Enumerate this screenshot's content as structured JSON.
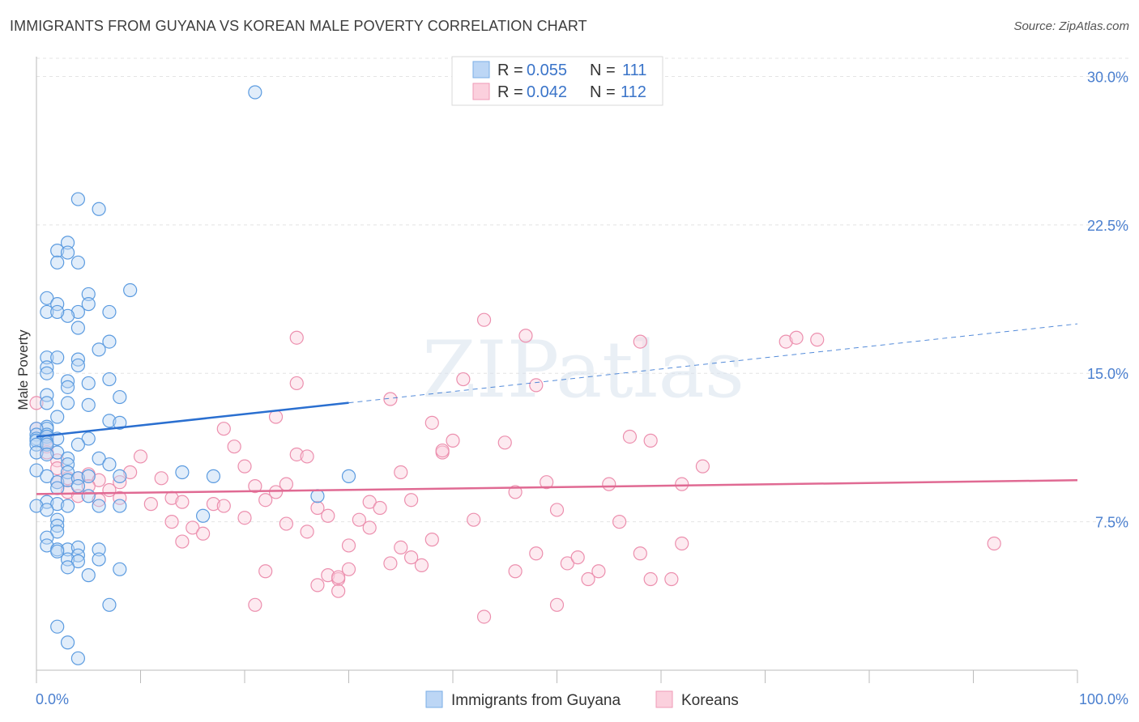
{
  "title": "IMMIGRANTS FROM GUYANA VS KOREAN MALE POVERTY CORRELATION CHART",
  "source": "Source: ZipAtlas.com",
  "watermark": "ZIPatlas",
  "legend_top": {
    "rows": [
      {
        "r_label": "R = ",
        "r_value": "0.055",
        "n_label": "N = ",
        "n_value": "111",
        "color": "#9cc3ef"
      },
      {
        "r_label": "R = ",
        "r_value": "0.042",
        "n_label": "N = ",
        "n_value": "112",
        "color": "#f7b8cc"
      }
    ]
  },
  "legend_bottom": [
    "Immigrants from Guyana",
    "Koreans"
  ],
  "chart_data": {
    "type": "scatter",
    "title": "IMMIGRANTS FROM GUYANA VS KOREAN MALE POVERTY CORRELATION CHART",
    "xlabel": "",
    "ylabel": "Male Poverty",
    "xlim": [
      0,
      100
    ],
    "ylim": [
      0,
      31
    ],
    "x_tick_labels": [
      "0.0%",
      "100.0%"
    ],
    "y_ticks": [
      7.5,
      15.0,
      22.5,
      30.0
    ],
    "y_tick_labels": [
      "7.5%",
      "15.0%",
      "22.5%",
      "30.0%"
    ],
    "grid": true,
    "legend_position": "top-center",
    "colors": {
      "guyana": "#5b9be0",
      "koreans": "#ec8fae",
      "guyana_line": "#2a6fd0",
      "koreans_line": "#e06a93"
    },
    "series": [
      {
        "name": "Immigrants from Guyana",
        "trend": {
          "x0": 0,
          "y0": 11.8,
          "x1": 100,
          "y1": 17.5,
          "solid_until": 30
        },
        "points": [
          [
            21,
            29.2
          ],
          [
            4,
            23.8
          ],
          [
            6,
            23.3
          ],
          [
            3,
            21.6
          ],
          [
            2,
            21.2
          ],
          [
            3,
            21.1
          ],
          [
            2,
            20.6
          ],
          [
            4,
            20.6
          ],
          [
            9,
            19.2
          ],
          [
            1,
            18.8
          ],
          [
            5,
            19.0
          ],
          [
            2,
            18.5
          ],
          [
            5,
            18.5
          ],
          [
            1,
            18.1
          ],
          [
            4,
            18.1
          ],
          [
            3,
            17.9
          ],
          [
            2,
            18.1
          ],
          [
            7,
            18.1
          ],
          [
            4,
            17.3
          ],
          [
            7,
            16.6
          ],
          [
            6,
            16.2
          ],
          [
            1,
            15.8
          ],
          [
            2,
            15.8
          ],
          [
            4,
            15.7
          ],
          [
            4,
            15.4
          ],
          [
            1,
            15.3
          ],
          [
            1,
            15.0
          ],
          [
            7,
            14.7
          ],
          [
            3,
            14.6
          ],
          [
            5,
            14.5
          ],
          [
            3,
            14.3
          ],
          [
            1,
            13.9
          ],
          [
            8,
            13.8
          ],
          [
            1,
            13.5
          ],
          [
            3,
            13.5
          ],
          [
            5,
            13.4
          ],
          [
            2,
            12.8
          ],
          [
            7,
            12.6
          ],
          [
            1,
            12.3
          ],
          [
            8,
            12.5
          ],
          [
            1,
            12.2
          ],
          [
            0,
            12.2
          ],
          [
            0,
            11.9
          ],
          [
            0,
            11.7
          ],
          [
            1,
            11.9
          ],
          [
            0,
            11.6
          ],
          [
            1,
            11.8
          ],
          [
            2,
            11.7
          ],
          [
            1,
            11.5
          ],
          [
            0,
            11.4
          ],
          [
            1,
            11.4
          ],
          [
            5,
            11.7
          ],
          [
            4,
            11.4
          ],
          [
            2,
            11.0
          ],
          [
            0,
            11.0
          ],
          [
            1,
            10.9
          ],
          [
            3,
            10.7
          ],
          [
            6,
            10.7
          ],
          [
            3,
            10.4
          ],
          [
            7,
            10.4
          ],
          [
            0,
            10.1
          ],
          [
            3,
            10.0
          ],
          [
            14,
            10.0
          ],
          [
            1,
            9.8
          ],
          [
            8,
            9.8
          ],
          [
            17,
            9.8
          ],
          [
            30,
            9.8
          ],
          [
            2,
            9.5
          ],
          [
            3,
            9.6
          ],
          [
            4,
            9.7
          ],
          [
            5,
            9.8
          ],
          [
            2,
            9.2
          ],
          [
            4,
            9.3
          ],
          [
            5,
            8.8
          ],
          [
            27,
            8.8
          ],
          [
            1,
            8.5
          ],
          [
            2,
            8.4
          ],
          [
            0,
            8.3
          ],
          [
            1,
            8.1
          ],
          [
            3,
            8.3
          ],
          [
            6,
            8.3
          ],
          [
            8,
            8.3
          ],
          [
            16,
            7.8
          ],
          [
            2,
            7.6
          ],
          [
            2,
            7.3
          ],
          [
            2,
            7.0
          ],
          [
            1,
            6.7
          ],
          [
            1,
            6.3
          ],
          [
            2,
            6.1
          ],
          [
            3,
            6.1
          ],
          [
            4,
            6.2
          ],
          [
            2,
            6.0
          ],
          [
            6,
            6.1
          ],
          [
            4,
            5.8
          ],
          [
            3,
            5.6
          ],
          [
            4,
            5.5
          ],
          [
            6,
            5.6
          ],
          [
            8,
            5.1
          ],
          [
            3,
            5.2
          ],
          [
            5,
            4.8
          ],
          [
            7,
            3.3
          ],
          [
            2,
            2.2
          ],
          [
            3,
            1.4
          ],
          [
            4,
            0.6
          ]
        ]
      },
      {
        "name": "Koreans",
        "trend": {
          "x0": 0,
          "y0": 8.9,
          "x1": 100,
          "y1": 9.6
        },
        "points": [
          [
            0,
            13.5
          ],
          [
            0,
            12.2
          ],
          [
            1,
            11.7
          ],
          [
            1,
            11.3
          ],
          [
            1,
            11.0
          ],
          [
            2,
            10.6
          ],
          [
            2,
            10.2
          ],
          [
            3,
            9.7
          ],
          [
            4,
            9.7
          ],
          [
            2,
            9.5
          ],
          [
            5,
            9.9
          ],
          [
            6,
            9.6
          ],
          [
            5,
            9.3
          ],
          [
            3,
            9.0
          ],
          [
            4,
            8.8
          ],
          [
            6,
            8.6
          ],
          [
            7,
            9.1
          ],
          [
            8,
            9.5
          ],
          [
            8,
            8.7
          ],
          [
            9,
            10.0
          ],
          [
            10,
            10.8
          ],
          [
            11,
            8.4
          ],
          [
            12,
            9.7
          ],
          [
            13,
            8.7
          ],
          [
            14,
            8.5
          ],
          [
            13,
            7.5
          ],
          [
            15,
            7.2
          ],
          [
            14,
            6.5
          ],
          [
            16,
            6.9
          ],
          [
            17,
            8.4
          ],
          [
            18,
            8.3
          ],
          [
            18,
            12.2
          ],
          [
            19,
            11.3
          ],
          [
            20,
            10.3
          ],
          [
            20,
            7.7
          ],
          [
            21,
            9.3
          ],
          [
            22,
            8.6
          ],
          [
            22,
            5.0
          ],
          [
            21,
            3.3
          ],
          [
            23,
            9.0
          ],
          [
            23,
            12.8
          ],
          [
            24,
            7.4
          ],
          [
            24,
            9.4
          ],
          [
            25,
            10.9
          ],
          [
            25,
            14.5
          ],
          [
            25,
            16.8
          ],
          [
            26,
            10.8
          ],
          [
            26,
            7.0
          ],
          [
            27,
            8.2
          ],
          [
            27,
            4.3
          ],
          [
            28,
            7.8
          ],
          [
            28,
            4.8
          ],
          [
            29,
            4.6
          ],
          [
            29,
            4.7
          ],
          [
            29,
            4.0
          ],
          [
            30,
            5.1
          ],
          [
            30,
            6.3
          ],
          [
            31,
            7.6
          ],
          [
            32,
            7.2
          ],
          [
            32,
            8.5
          ],
          [
            33,
            8.2
          ],
          [
            34,
            5.4
          ],
          [
            34,
            13.7
          ],
          [
            35,
            10.0
          ],
          [
            35,
            6.2
          ],
          [
            36,
            5.7
          ],
          [
            36,
            8.6
          ],
          [
            37,
            5.3
          ],
          [
            38,
            6.6
          ],
          [
            38,
            12.5
          ],
          [
            39,
            11.0
          ],
          [
            39,
            11.1
          ],
          [
            40,
            11.6
          ],
          [
            41,
            14.7
          ],
          [
            42,
            7.6
          ],
          [
            43,
            2.7
          ],
          [
            43,
            17.7
          ],
          [
            45,
            11.5
          ],
          [
            46,
            9.0
          ],
          [
            46,
            5.0
          ],
          [
            47,
            16.9
          ],
          [
            48,
            14.4
          ],
          [
            48,
            5.9
          ],
          [
            49,
            9.5
          ],
          [
            50,
            8.1
          ],
          [
            50,
            3.3
          ],
          [
            51,
            5.4
          ],
          [
            52,
            5.7
          ],
          [
            53,
            4.6
          ],
          [
            54,
            5.0
          ],
          [
            55,
            9.4
          ],
          [
            56,
            7.5
          ],
          [
            57,
            11.8
          ],
          [
            58,
            5.9
          ],
          [
            58,
            16.6
          ],
          [
            59,
            11.6
          ],
          [
            59,
            4.6
          ],
          [
            61,
            4.6
          ],
          [
            62,
            9.4
          ],
          [
            62,
            6.4
          ],
          [
            64,
            10.3
          ],
          [
            72,
            16.6
          ],
          [
            73,
            16.8
          ],
          [
            75,
            16.7
          ],
          [
            92,
            6.4
          ]
        ]
      }
    ]
  }
}
